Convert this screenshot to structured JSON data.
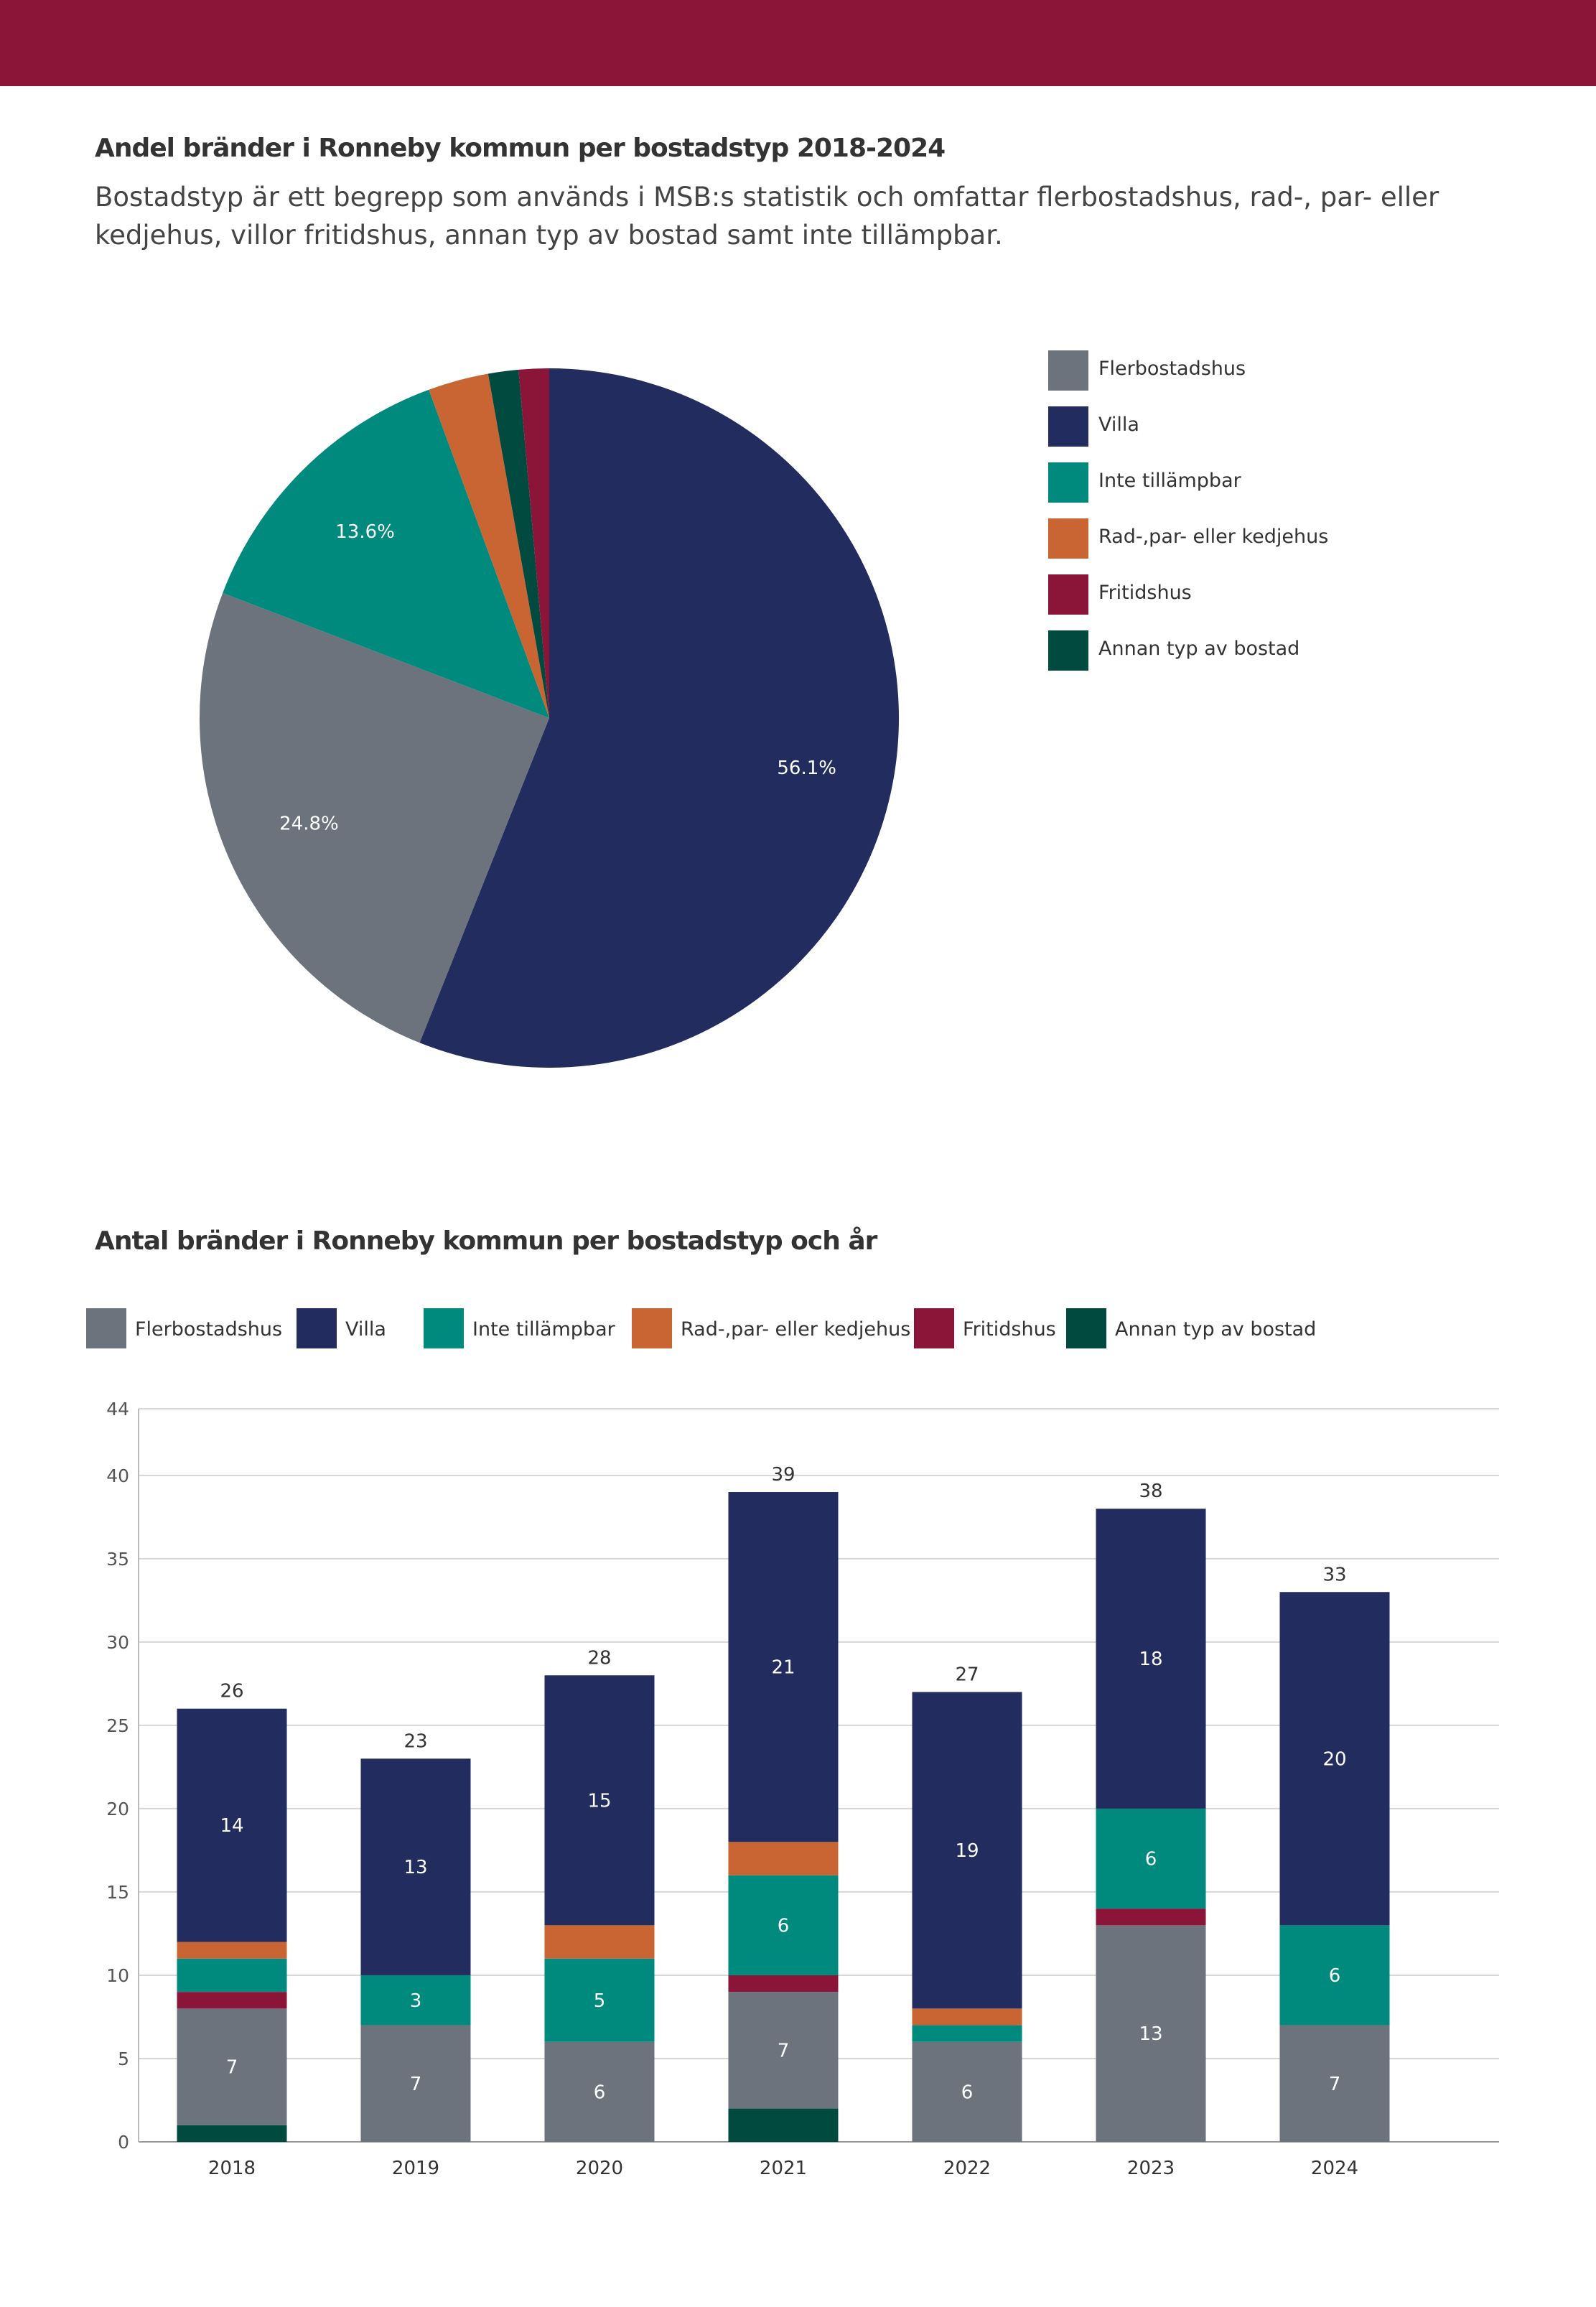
{
  "colors": {
    "banner": "#8b1538",
    "Flerbostadshus": "#6c737d",
    "Villa": "#232c5e",
    "Inte tillämpbar": "#008a7e",
    "Rad-,par- eller kedjehus": "#c96532",
    "Fritidshus": "#8b1538",
    "Annan typ av bostad": "#004a40"
  },
  "pie": {
    "title": "Andel bränder i Ronneby kommun per bostadstyp 2018-2024",
    "description": "Bostadstyp är ett begrepp som används i MSB:s statistik och omfattar flerbostadshus, rad-, par- eller kedjehus, villor fritidshus, annan typ av bostad samt inte tillämpbar.",
    "legend": [
      "Flerbostadshus",
      "Villa",
      "Inte tillämpbar",
      "Rad-,par- eller kedjehus",
      "Fritidshus",
      "Annan typ av bostad"
    ]
  },
  "bar": {
    "title": "Antal bränder i Ronneby kommun per bostadstyp och år",
    "legend": [
      "Flerbostadshus",
      "Villa",
      "Inte tillämpbar",
      "Rad-,par- eller kedjehus",
      "Fritidshus",
      "Annan typ av bostad"
    ]
  },
  "chart_data": [
    {
      "type": "pie",
      "title": "Andel bränder i Ronneby kommun per bostadstyp 2018-2024",
      "categories": [
        "Villa",
        "Flerbostadshus",
        "Inte tillämpbar",
        "Rad-,par- eller kedjehus",
        "Annan typ av bostad",
        "Fritidshus"
      ],
      "values": [
        56.1,
        24.8,
        13.6,
        2.8,
        1.4,
        1.4
      ],
      "labels": [
        "56.1%",
        "24.8%",
        "13.6%",
        "",
        "",
        ""
      ],
      "legend_position": "right"
    },
    {
      "type": "bar",
      "stacked": true,
      "title": "Antal bränder i Ronneby kommun per bostadstyp och år",
      "categories": [
        "2018",
        "2019",
        "2020",
        "2021",
        "2022",
        "2023",
        "2024"
      ],
      "series": [
        {
          "name": "Annan typ av bostad",
          "values": [
            1,
            0,
            0,
            2,
            0,
            0,
            0
          ]
        },
        {
          "name": "Flerbostadshus",
          "values": [
            7,
            7,
            6,
            7,
            6,
            13,
            7
          ]
        },
        {
          "name": "Fritidshus",
          "values": [
            1,
            0,
            0,
            1,
            0,
            1,
            0
          ]
        },
        {
          "name": "Inte tillämpbar",
          "values": [
            2,
            3,
            5,
            6,
            1,
            6,
            6
          ]
        },
        {
          "name": "Rad-,par- eller kedjehus",
          "values": [
            1,
            0,
            2,
            2,
            1,
            0,
            0
          ]
        },
        {
          "name": "Villa",
          "values": [
            14,
            13,
            15,
            21,
            19,
            18,
            20
          ]
        }
      ],
      "segment_labels": [
        {
          "year": "2018",
          "series": "Flerbostadshus",
          "text": "7"
        },
        {
          "year": "2018",
          "series": "Villa",
          "text": "14"
        },
        {
          "year": "2019",
          "series": "Flerbostadshus",
          "text": "7"
        },
        {
          "year": "2019",
          "series": "Inte tillämpbar",
          "text": "3"
        },
        {
          "year": "2019",
          "series": "Villa",
          "text": "13"
        },
        {
          "year": "2020",
          "series": "Flerbostadshus",
          "text": "6"
        },
        {
          "year": "2020",
          "series": "Inte tillämpbar",
          "text": "5"
        },
        {
          "year": "2020",
          "series": "Villa",
          "text": "15"
        },
        {
          "year": "2021",
          "series": "Flerbostadshus",
          "text": "7"
        },
        {
          "year": "2021",
          "series": "Inte tillämpbar",
          "text": "6"
        },
        {
          "year": "2021",
          "series": "Villa",
          "text": "21"
        },
        {
          "year": "2022",
          "series": "Flerbostadshus",
          "text": "6"
        },
        {
          "year": "2022",
          "series": "Villa",
          "text": "19"
        },
        {
          "year": "2023",
          "series": "Flerbostadshus",
          "text": "13"
        },
        {
          "year": "2023",
          "series": "Inte tillämpbar",
          "text": "6"
        },
        {
          "year": "2023",
          "series": "Villa",
          "text": "18"
        },
        {
          "year": "2024",
          "series": "Flerbostadshus",
          "text": "7"
        },
        {
          "year": "2024",
          "series": "Inte tillämpbar",
          "text": "6"
        },
        {
          "year": "2024",
          "series": "Villa",
          "text": "20"
        }
      ],
      "totals": [
        26,
        23,
        28,
        39,
        27,
        38,
        33
      ],
      "yticks": [
        0,
        5,
        10,
        15,
        20,
        25,
        30,
        35,
        40,
        44
      ],
      "ylim": [
        0,
        44
      ],
      "grid": true,
      "legend_position": "top"
    }
  ]
}
